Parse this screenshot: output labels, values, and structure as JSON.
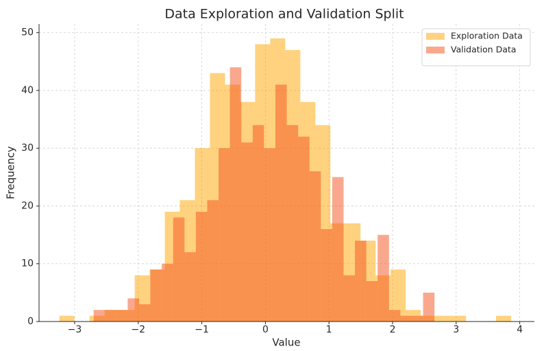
{
  "chart_data": {
    "type": "histogram",
    "title": "Data Exploration and Validation Split",
    "xlabel": "Value",
    "ylabel": "Frequency",
    "xlim": [
      -3.56,
      4.23
    ],
    "ylim": [
      0,
      51.5
    ],
    "xticks": [
      {
        "value": -3,
        "label": "−3"
      },
      {
        "value": -2,
        "label": "−2"
      },
      {
        "value": -1,
        "label": "−1"
      },
      0,
      1,
      2,
      3,
      4
    ],
    "yticks": [
      0,
      10,
      20,
      30,
      40,
      50
    ],
    "grid": true,
    "legend": "upper right",
    "series": [
      {
        "name": "Exploration Data",
        "color": "#ffa500",
        "bins": [
          -3.24,
          -3.003,
          -2.766,
          -2.53,
          -2.293,
          -2.056,
          -1.819,
          -1.582,
          -1.346,
          -1.109,
          -0.872,
          -0.635,
          -0.398,
          -0.162,
          0.075,
          0.312,
          0.549,
          0.786,
          1.022,
          1.259,
          1.496,
          1.733,
          1.97,
          2.206,
          2.443,
          2.68,
          2.917,
          3.154,
          3.39,
          3.627,
          3.864
        ],
        "values": [
          1,
          0,
          1,
          2,
          2,
          8,
          9,
          19,
          21,
          30,
          43,
          41,
          38,
          48,
          49,
          47,
          38,
          34,
          17,
          17,
          14,
          8,
          9,
          2,
          1,
          1,
          1,
          0,
          0,
          1
        ]
      },
      {
        "name": "Validation Data",
        "color": "#f4511e",
        "bins": [
          -2.702,
          -2.523,
          -2.345,
          -2.166,
          -1.987,
          -1.809,
          -1.63,
          -1.451,
          -1.272,
          -1.094,
          -0.915,
          -0.736,
          -0.558,
          -0.379,
          -0.2,
          -0.022,
          0.157,
          0.336,
          0.515,
          0.693,
          0.872,
          1.051,
          1.229,
          1.408,
          1.587,
          1.765,
          1.944,
          2.123,
          2.302,
          2.48,
          2.659
        ],
        "values": [
          2,
          2,
          2,
          4,
          3,
          9,
          10,
          18,
          12,
          19,
          21,
          30,
          44,
          31,
          34,
          30,
          41,
          34,
          32,
          26,
          16,
          25,
          8,
          14,
          7,
          15,
          2,
          1,
          1,
          5
        ]
      }
    ]
  }
}
